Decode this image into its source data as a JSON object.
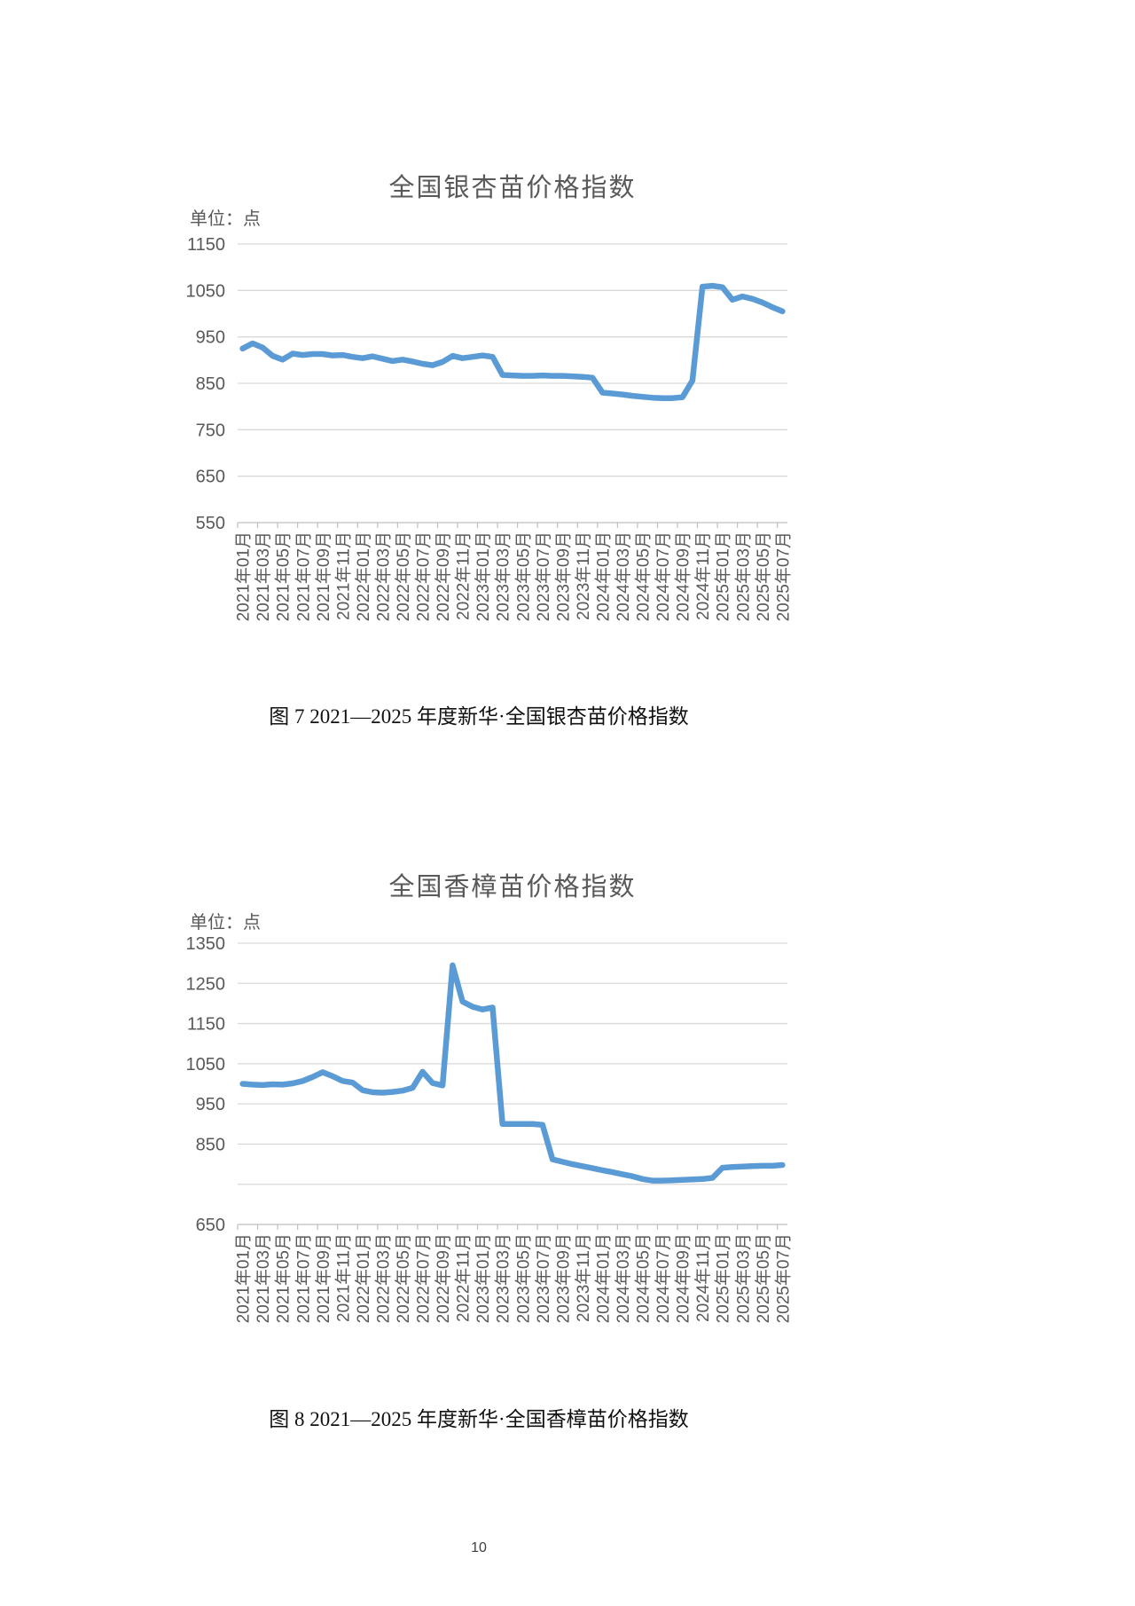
{
  "page": {
    "number": "10"
  },
  "figures": [
    {
      "caption": "图 7 2021—2025 年度新华·全国银杏苗价格指数"
    },
    {
      "caption": "图 8 2021—2025 年度新华·全国香樟苗价格指数"
    }
  ],
  "chart_data": [
    {
      "type": "line",
      "title": "全国银杏苗价格指数",
      "unit_label": "单位：点",
      "x_range": "2021年01月 to 2025年07月, monthly",
      "x_tick_labels": [
        "2021年01月",
        "2021年03月",
        "2021年05月",
        "2021年07月",
        "2021年09月",
        "2021年11月",
        "2022年01月",
        "2022年03月",
        "2022年05月",
        "2022年07月",
        "2022年09月",
        "2022年11月",
        "2023年01月",
        "2023年03月",
        "2023年05月",
        "2023年07月",
        "2023年09月",
        "2023年11月",
        "2024年01月",
        "2024年03月",
        "2024年05月",
        "2024年07月",
        "2024年09月",
        "2024年11月",
        "2025年01月",
        "2025年03月",
        "2025年05月",
        "2025年07月"
      ],
      "values": [
        925,
        936,
        927,
        909,
        901,
        914,
        911,
        913,
        913,
        910,
        911,
        907,
        904,
        908,
        903,
        898,
        901,
        897,
        892,
        889,
        896,
        909,
        904,
        907,
        910,
        907,
        868,
        867,
        866,
        866,
        867,
        866,
        866,
        865,
        864,
        862,
        830,
        828,
        826,
        823,
        821,
        819,
        818,
        818,
        820,
        856,
        1058,
        1060,
        1057,
        1030,
        1037,
        1032,
        1024,
        1014,
        1005
      ],
      "ylim": [
        550,
        1150
      ],
      "ytick_step": 100,
      "ytick_labels": [
        "1150",
        "1050",
        "950",
        "850",
        "750",
        "650",
        "550"
      ],
      "grid": true,
      "legend": false,
      "line_color": "#5B9BD5",
      "grid_color": "#D9D9D9",
      "axis_color": "#BFBFBF",
      "text_color": "#595959"
    },
    {
      "type": "line",
      "title": "全国香樟苗价格指数",
      "unit_label": "单位：点",
      "x_range": "2021年01月 to 2025年07月, monthly",
      "x_tick_labels": [
        "2021年01月",
        "2021年03月",
        "2021年05月",
        "2021年07月",
        "2021年09月",
        "2021年11月",
        "2022年01月",
        "2022年03月",
        "2022年05月",
        "2022年07月",
        "2022年09月",
        "2022年11月",
        "2023年01月",
        "2023年03月",
        "2023年05月",
        "2023年07月",
        "2023年09月",
        "2023年11月",
        "2024年01月",
        "2024年03月",
        "2024年05月",
        "2024年07月",
        "2024年09月",
        "2024年11月",
        "2025年01月",
        "2025年03月",
        "2025年05月",
        "2025年07月"
      ],
      "values": [
        1000,
        998,
        997,
        999,
        998,
        1001,
        1007,
        1017,
        1029,
        1019,
        1007,
        1003,
        984,
        979,
        978,
        980,
        983,
        990,
        1030,
        1002,
        996,
        1295,
        1205,
        1192,
        1185,
        1190,
        900,
        900,
        900,
        900,
        898,
        812,
        806,
        800,
        795,
        790,
        785,
        780,
        775,
        770,
        763,
        759,
        759,
        760,
        761,
        762,
        763,
        766,
        791,
        793,
        794,
        795,
        796,
        796,
        798
      ],
      "ylim": [
        650,
        1350
      ],
      "ytick_step": 100,
      "ytick_labels": [
        "1350",
        "1250",
        "1150",
        "1050",
        "950",
        "850",
        "650"
      ],
      "grid": true,
      "legend": false,
      "line_color": "#5B9BD5",
      "grid_color": "#D9D9D9",
      "axis_color": "#BFBFBF",
      "text_color": "#595959"
    }
  ]
}
